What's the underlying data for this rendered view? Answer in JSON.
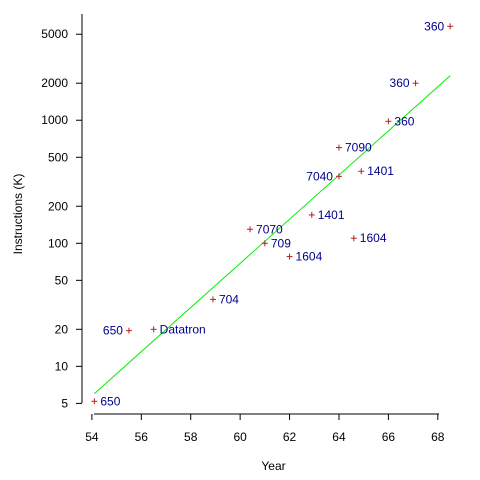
{
  "chart_data": {
    "type": "scatter",
    "title": "",
    "xlabel": "Year",
    "ylabel": "Instructions (K)",
    "xlim": [
      53.6,
      69.1
    ],
    "ylim": [
      4.1,
      7300
    ],
    "yscale": "log",
    "grid": false,
    "legend": "none",
    "x_ticks": [
      54,
      56,
      58,
      60,
      62,
      64,
      66,
      68
    ],
    "x_tick_labels": [
      "54",
      "56",
      "58",
      "60",
      "62",
      "64",
      "66",
      "68"
    ],
    "y_ticks": [
      5,
      10,
      20,
      50,
      100,
      200,
      500,
      1000,
      2000,
      5000
    ],
    "y_tick_labels": [
      "5",
      "10",
      "20",
      "50",
      "100",
      "200",
      "500",
      "1000",
      "2000",
      "5000"
    ],
    "points": [
      {
        "label": "650",
        "x": 54.1,
        "y": 5.2,
        "label_side": "right"
      },
      {
        "label": "650",
        "x": 55.5,
        "y": 19.5,
        "label_side": "left"
      },
      {
        "label": "Datatron",
        "x": 56.5,
        "y": 20,
        "label_side": "right"
      },
      {
        "label": "704",
        "x": 58.9,
        "y": 35,
        "label_side": "right"
      },
      {
        "label": "7070",
        "x": 60.4,
        "y": 130,
        "label_side": "right"
      },
      {
        "label": "709",
        "x": 61.0,
        "y": 100,
        "label_side": "right"
      },
      {
        "label": "1604",
        "x": 62.0,
        "y": 78,
        "label_side": "right"
      },
      {
        "label": "1401",
        "x": 62.9,
        "y": 170,
        "label_side": "right"
      },
      {
        "label": "7040",
        "x": 64.0,
        "y": 350,
        "label_side": "left"
      },
      {
        "label": "7090",
        "x": 64.0,
        "y": 600,
        "label_side": "right"
      },
      {
        "label": "1401",
        "x": 64.9,
        "y": 385,
        "label_side": "right"
      },
      {
        "label": "1604",
        "x": 64.6,
        "y": 110,
        "label_side": "right"
      },
      {
        "label": "360",
        "x": 66.0,
        "y": 980,
        "label_side": "right"
      },
      {
        "label": "360",
        "x": 67.1,
        "y": 2000,
        "label_side": "left"
      },
      {
        "label": "360",
        "x": 68.5,
        "y": 5800,
        "label_side": "left"
      }
    ],
    "trend_line": {
      "x": [
        54.1,
        68.5
      ],
      "y": [
        6,
        2300
      ]
    },
    "colors": {
      "marker": "#b22222",
      "point_label": "#00008b",
      "trend_line": "#00ee00",
      "axis": "#000000"
    }
  }
}
